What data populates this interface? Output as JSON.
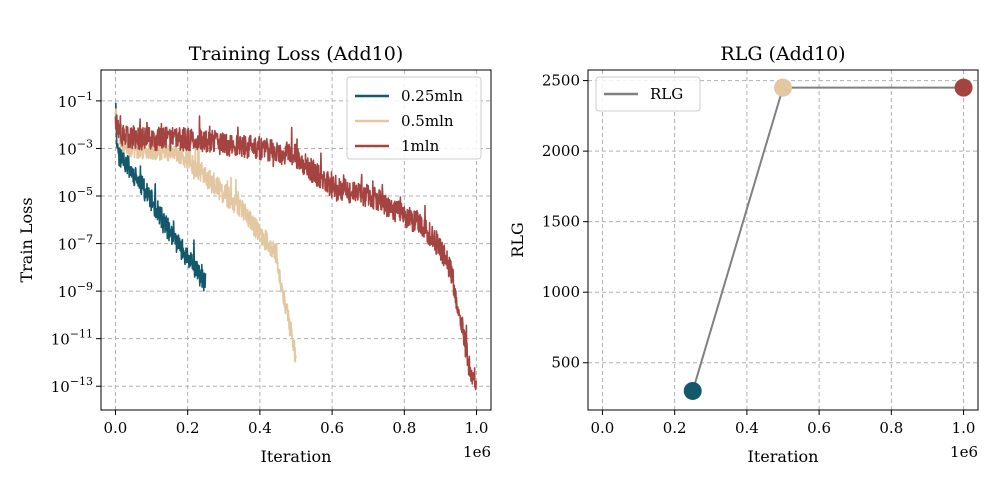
{
  "chart_data": [
    {
      "type": "line",
      "title": "Training Loss (Add10)",
      "xlabel": "Iteration",
      "ylabel": "Train Loss",
      "x_offset_label": "1e6",
      "xlim": [
        -0.04,
        1.04
      ],
      "ylim_log10": [
        -14,
        0.3
      ],
      "yscale": "log",
      "grid": true,
      "legend_position": "top-right",
      "xticks": [
        {
          "value": 0.0,
          "label": "0.0"
        },
        {
          "value": 0.2,
          "label": "0.2"
        },
        {
          "value": 0.4,
          "label": "0.4"
        },
        {
          "value": 0.6,
          "label": "0.6"
        },
        {
          "value": 0.8,
          "label": "0.8"
        },
        {
          "value": 1.0,
          "label": "1.0"
        }
      ],
      "yticks": [
        {
          "exp": -1,
          "base": "10",
          "sup": "−1"
        },
        {
          "exp": -3,
          "base": "10",
          "sup": "−3"
        },
        {
          "exp": -5,
          "base": "10",
          "sup": "−5"
        },
        {
          "exp": -7,
          "base": "10",
          "sup": "−7"
        },
        {
          "exp": -9,
          "base": "10",
          "sup": "−9"
        },
        {
          "exp": -11,
          "base": "10",
          "sup": "−11"
        },
        {
          "exp": -13,
          "base": "10",
          "sup": "−13"
        }
      ],
      "series": [
        {
          "name": "0.25mln",
          "color": "#13586b",
          "keypoints": [
            [
              0.0,
              -0.9
            ],
            [
              0.003,
              -2.6
            ],
            [
              0.01,
              -3.3
            ],
            [
              0.03,
              -3.6
            ],
            [
              0.06,
              -4.3
            ],
            [
              0.1,
              -5.2
            ],
            [
              0.15,
              -6.5
            ],
            [
              0.2,
              -7.6
            ],
            [
              0.25,
              -8.7
            ]
          ],
          "noise": 0.9,
          "seed": 11
        },
        {
          "name": "0.5mln",
          "color": "#e3c7a0",
          "keypoints": [
            [
              0.0,
              -1.3
            ],
            [
              0.01,
              -2.6
            ],
            [
              0.05,
              -3.0
            ],
            [
              0.1,
              -3.0
            ],
            [
              0.15,
              -3.1
            ],
            [
              0.2,
              -3.4
            ],
            [
              0.25,
              -4.2
            ],
            [
              0.3,
              -4.9
            ],
            [
              0.35,
              -5.5
            ],
            [
              0.4,
              -6.6
            ],
            [
              0.44,
              -7.3
            ],
            [
              0.47,
              -9.5
            ],
            [
              0.5,
              -11.8
            ]
          ],
          "noise": 0.9,
          "seed": 23
        },
        {
          "name": "1mln",
          "color": "#a4433f",
          "keypoints": [
            [
              0.0,
              -1.4
            ],
            [
              0.01,
              -2.5
            ],
            [
              0.1,
              -2.6
            ],
            [
              0.2,
              -2.6
            ],
            [
              0.3,
              -2.8
            ],
            [
              0.4,
              -3.0
            ],
            [
              0.5,
              -3.3
            ],
            [
              0.55,
              -4.0
            ],
            [
              0.6,
              -4.6
            ],
            [
              0.7,
              -5.0
            ],
            [
              0.8,
              -5.8
            ],
            [
              0.85,
              -6.2
            ],
            [
              0.9,
              -7.2
            ],
            [
              0.93,
              -8.2
            ],
            [
              0.96,
              -10.5
            ],
            [
              0.98,
              -12.2
            ],
            [
              1.0,
              -12.9
            ]
          ],
          "noise": 1.0,
          "seed": 37
        }
      ]
    },
    {
      "type": "line",
      "title": "RLG (Add10)",
      "xlabel": "Iteration",
      "ylabel": "RLG",
      "x_offset_label": "1e6",
      "xlim": [
        -0.04,
        1.04
      ],
      "ylim": [
        165,
        2575
      ],
      "grid": true,
      "legend_position": "top-left",
      "xticks": [
        {
          "value": 0.0,
          "label": "0.0"
        },
        {
          "value": 0.2,
          "label": "0.2"
        },
        {
          "value": 0.4,
          "label": "0.4"
        },
        {
          "value": 0.6,
          "label": "0.6"
        },
        {
          "value": 0.8,
          "label": "0.8"
        },
        {
          "value": 1.0,
          "label": "1.0"
        }
      ],
      "yticks": [
        {
          "value": 500,
          "label": "500"
        },
        {
          "value": 1000,
          "label": "1000"
        },
        {
          "value": 1500,
          "label": "1500"
        },
        {
          "value": 2000,
          "label": "2000"
        },
        {
          "value": 2500,
          "label": "2500"
        }
      ],
      "series": [
        {
          "name": "RLG",
          "color": "#808080",
          "x": [
            0.25,
            0.5,
            1.0
          ],
          "y": [
            300,
            2450,
            2450
          ],
          "marker_colors": [
            "#13586b",
            "#e3c7a0",
            "#a4433f"
          ]
        }
      ]
    }
  ]
}
